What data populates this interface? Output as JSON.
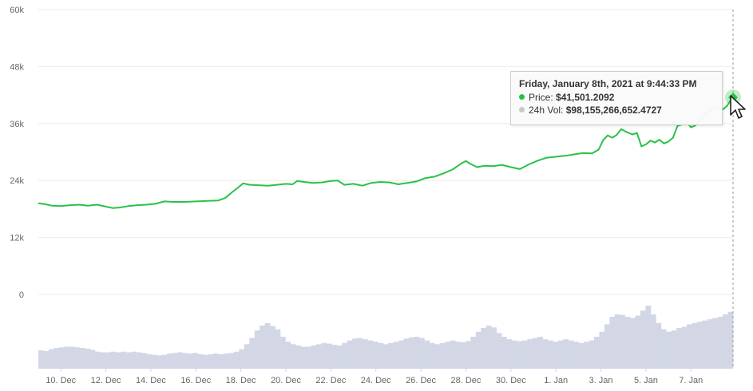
{
  "chart_data": {
    "type": "line",
    "title": "",
    "xlabel": "",
    "ylabel": "",
    "ylim": [
      0,
      60000
    ],
    "y_ticks": [
      0,
      12000,
      24000,
      36000,
      48000,
      60000
    ],
    "y_tick_labels": [
      "0",
      "12k",
      "24k",
      "36k",
      "48k",
      "60k"
    ],
    "x_tick_labels": [
      "10. Dec",
      "12. Dec",
      "14. Dec",
      "16. Dec",
      "18. Dec",
      "20. Dec",
      "22. Dec",
      "24. Dec",
      "26. Dec",
      "28. Dec",
      "30. Dec",
      "1. Jan",
      "3. Jan",
      "5. Jan",
      "7. Jan"
    ],
    "x_tick_days": [
      10,
      12,
      14,
      16,
      18,
      20,
      22,
      24,
      26,
      28,
      30,
      32,
      34,
      36,
      38
    ],
    "grid": true,
    "series": [
      {
        "color": "#28c247",
        "points": [
          [
            9.0,
            19200
          ],
          [
            9.3,
            19000
          ],
          [
            9.6,
            18700
          ],
          [
            10.0,
            18600
          ],
          [
            10.4,
            18800
          ],
          [
            10.8,
            18900
          ],
          [
            11.2,
            18700
          ],
          [
            11.6,
            18900
          ],
          [
            12.0,
            18500
          ],
          [
            12.3,
            18200
          ],
          [
            12.6,
            18300
          ],
          [
            13.0,
            18600
          ],
          [
            13.4,
            18800
          ],
          [
            13.8,
            18900
          ],
          [
            14.2,
            19100
          ],
          [
            14.6,
            19600
          ],
          [
            15.0,
            19500
          ],
          [
            15.5,
            19500
          ],
          [
            16.0,
            19600
          ],
          [
            16.5,
            19700
          ],
          [
            17.0,
            19800
          ],
          [
            17.3,
            20300
          ],
          [
            17.6,
            21500
          ],
          [
            17.9,
            22600
          ],
          [
            18.1,
            23400
          ],
          [
            18.4,
            23100
          ],
          [
            18.8,
            23000
          ],
          [
            19.2,
            22900
          ],
          [
            19.6,
            23100
          ],
          [
            20.0,
            23300
          ],
          [
            20.3,
            23200
          ],
          [
            20.5,
            23900
          ],
          [
            20.8,
            23700
          ],
          [
            21.2,
            23500
          ],
          [
            21.6,
            23600
          ],
          [
            22.0,
            23900
          ],
          [
            22.3,
            24000
          ],
          [
            22.6,
            23100
          ],
          [
            23.0,
            23300
          ],
          [
            23.4,
            22900
          ],
          [
            23.8,
            23500
          ],
          [
            24.2,
            23700
          ],
          [
            24.6,
            23600
          ],
          [
            25.0,
            23200
          ],
          [
            25.4,
            23500
          ],
          [
            25.8,
            23800
          ],
          [
            26.2,
            24500
          ],
          [
            26.6,
            24800
          ],
          [
            27.0,
            25500
          ],
          [
            27.4,
            26300
          ],
          [
            27.8,
            27600
          ],
          [
            28.0,
            28100
          ],
          [
            28.2,
            27500
          ],
          [
            28.5,
            26800
          ],
          [
            28.8,
            27100
          ],
          [
            29.2,
            27000
          ],
          [
            29.6,
            27300
          ],
          [
            30.0,
            26800
          ],
          [
            30.4,
            26400
          ],
          [
            30.8,
            27400
          ],
          [
            31.2,
            28200
          ],
          [
            31.6,
            28800
          ],
          [
            32.0,
            29000
          ],
          [
            32.4,
            29200
          ],
          [
            32.8,
            29500
          ],
          [
            33.2,
            29800
          ],
          [
            33.6,
            29700
          ],
          [
            33.9,
            30500
          ],
          [
            34.1,
            32500
          ],
          [
            34.3,
            33500
          ],
          [
            34.5,
            33000
          ],
          [
            34.7,
            33600
          ],
          [
            34.9,
            34800
          ],
          [
            35.1,
            34300
          ],
          [
            35.4,
            33700
          ],
          [
            35.6,
            34000
          ],
          [
            35.8,
            31200
          ],
          [
            36.0,
            31600
          ],
          [
            36.2,
            32400
          ],
          [
            36.4,
            32000
          ],
          [
            36.6,
            32600
          ],
          [
            36.8,
            31800
          ],
          [
            37.0,
            32200
          ],
          [
            37.2,
            33000
          ],
          [
            37.4,
            35500
          ],
          [
            37.6,
            35800
          ],
          [
            37.8,
            36400
          ],
          [
            38.0,
            35200
          ],
          [
            38.2,
            35600
          ],
          [
            38.4,
            36800
          ],
          [
            38.6,
            37800
          ],
          [
            38.8,
            38600
          ],
          [
            39.0,
            38900
          ],
          [
            39.2,
            39400
          ],
          [
            39.4,
            38900
          ],
          [
            39.6,
            39700
          ],
          [
            39.75,
            40800
          ],
          [
            39.87,
            41501
          ]
        ]
      }
    ],
    "volume": {
      "color": "#d3d7e5",
      "values": [
        0.28,
        0.27,
        0.3,
        0.32,
        0.33,
        0.34,
        0.34,
        0.33,
        0.32,
        0.31,
        0.29,
        0.26,
        0.25,
        0.25,
        0.26,
        0.25,
        0.26,
        0.25,
        0.26,
        0.25,
        0.24,
        0.22,
        0.21,
        0.2,
        0.21,
        0.23,
        0.24,
        0.25,
        0.24,
        0.23,
        0.24,
        0.22,
        0.21,
        0.22,
        0.23,
        0.22,
        0.23,
        0.24,
        0.26,
        0.3,
        0.38,
        0.48,
        0.6,
        0.68,
        0.72,
        0.67,
        0.62,
        0.5,
        0.42,
        0.38,
        0.36,
        0.34,
        0.34,
        0.36,
        0.38,
        0.4,
        0.39,
        0.37,
        0.36,
        0.4,
        0.44,
        0.47,
        0.48,
        0.46,
        0.44,
        0.42,
        0.4,
        0.38,
        0.4,
        0.42,
        0.44,
        0.47,
        0.49,
        0.5,
        0.48,
        0.44,
        0.4,
        0.38,
        0.4,
        0.42,
        0.44,
        0.42,
        0.41,
        0.43,
        0.5,
        0.58,
        0.64,
        0.68,
        0.65,
        0.56,
        0.5,
        0.46,
        0.44,
        0.43,
        0.44,
        0.46,
        0.48,
        0.5,
        0.46,
        0.44,
        0.42,
        0.44,
        0.46,
        0.44,
        0.42,
        0.4,
        0.42,
        0.44,
        0.5,
        0.58,
        0.7,
        0.82,
        0.86,
        0.85,
        0.82,
        0.8,
        0.84,
        0.92,
        1.0,
        0.86,
        0.72,
        0.62,
        0.58,
        0.6,
        0.64,
        0.66,
        0.7,
        0.72,
        0.74,
        0.76,
        0.78,
        0.8,
        0.82,
        0.86,
        0.9
      ]
    },
    "tooltip": {
      "title": "Friday, January 8th, 2021 at 9:44:33 PM",
      "price_label": "Price:",
      "price_value": "$41,501.2092",
      "vol_label": "24h Vol:",
      "vol_value": "$98,155,266,652.4727",
      "price_dot_color": "#28c247",
      "vol_dot_color": "#c8c8c8"
    }
  }
}
